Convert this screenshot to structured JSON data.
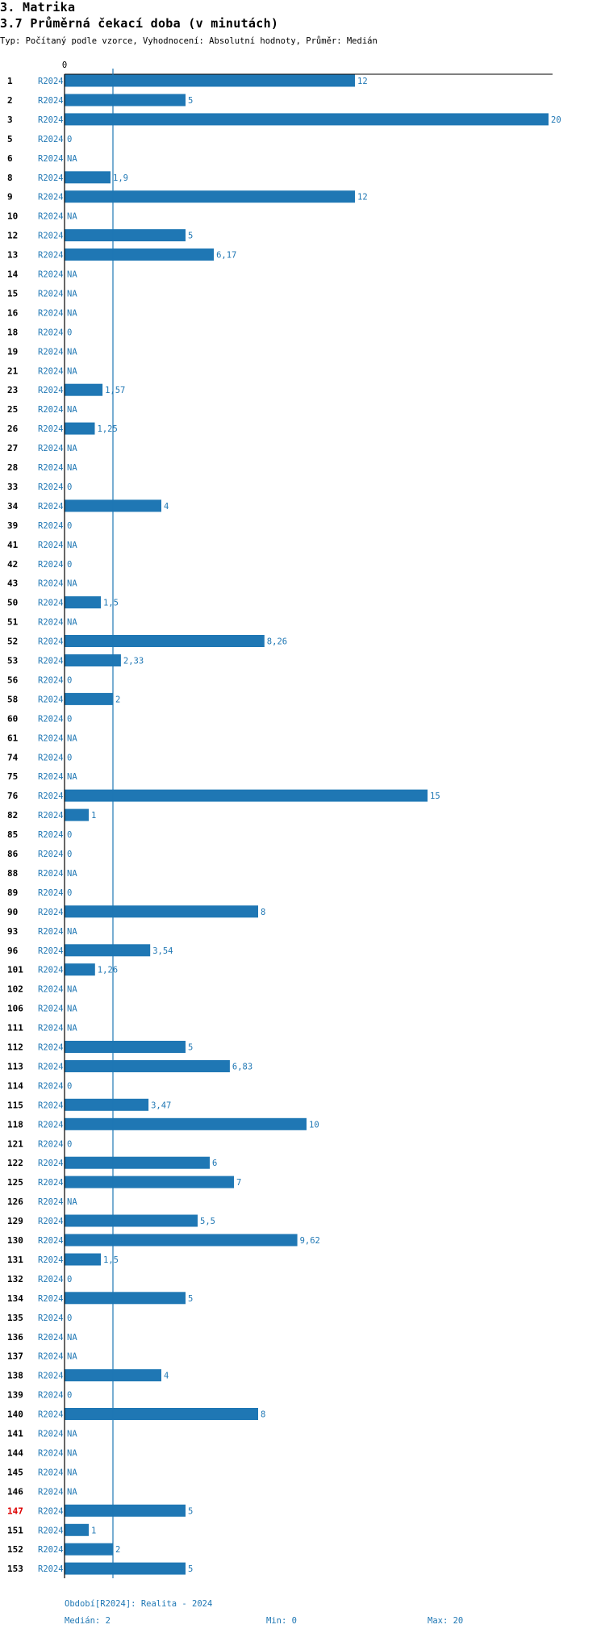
{
  "header": {
    "section": "3. Matrika",
    "title": "3.7 Průměrná čekací doba (v minutách)",
    "subtitle": "Typ: Počítaný podle vzorce, Vyhodnocení: Absolutní hodnoty, Průměr: Medián"
  },
  "footer": {
    "period": "Období[R2024]: Realita - 2024",
    "median": "Medián: 2",
    "min": "Min: 0",
    "max": "Max: 20"
  },
  "colors": {
    "bar": "#1f77b4",
    "text": "#1f77b4",
    "highlight": "#dd0000"
  },
  "chart_data": {
    "type": "bar",
    "orientation": "horizontal",
    "series_label": "R2024",
    "xlim": [
      0,
      20
    ],
    "x_tick_labels": [
      "0"
    ],
    "median_line": 2,
    "highlight_category": "147",
    "rows": [
      {
        "id": "1",
        "value": 12,
        "label": "12"
      },
      {
        "id": "2",
        "value": 5,
        "label": "5"
      },
      {
        "id": "3",
        "value": 20,
        "label": "20"
      },
      {
        "id": "5",
        "value": 0,
        "label": "0"
      },
      {
        "id": "6",
        "value": null,
        "label": "NA"
      },
      {
        "id": "8",
        "value": 1.9,
        "label": "1,9"
      },
      {
        "id": "9",
        "value": 12,
        "label": "12"
      },
      {
        "id": "10",
        "value": null,
        "label": "NA"
      },
      {
        "id": "12",
        "value": 5,
        "label": "5"
      },
      {
        "id": "13",
        "value": 6.17,
        "label": "6,17"
      },
      {
        "id": "14",
        "value": null,
        "label": "NA"
      },
      {
        "id": "15",
        "value": null,
        "label": "NA"
      },
      {
        "id": "16",
        "value": null,
        "label": "NA"
      },
      {
        "id": "18",
        "value": 0,
        "label": "0"
      },
      {
        "id": "19",
        "value": null,
        "label": "NA"
      },
      {
        "id": "21",
        "value": null,
        "label": "NA"
      },
      {
        "id": "23",
        "value": 1.57,
        "label": "1,57"
      },
      {
        "id": "25",
        "value": null,
        "label": "NA"
      },
      {
        "id": "26",
        "value": 1.25,
        "label": "1,25"
      },
      {
        "id": "27",
        "value": null,
        "label": "NA"
      },
      {
        "id": "28",
        "value": null,
        "label": "NA"
      },
      {
        "id": "33",
        "value": 0,
        "label": "0"
      },
      {
        "id": "34",
        "value": 4,
        "label": "4"
      },
      {
        "id": "39",
        "value": 0,
        "label": "0"
      },
      {
        "id": "41",
        "value": null,
        "label": "NA"
      },
      {
        "id": "42",
        "value": 0,
        "label": "0"
      },
      {
        "id": "43",
        "value": null,
        "label": "NA"
      },
      {
        "id": "50",
        "value": 1.5,
        "label": "1,5"
      },
      {
        "id": "51",
        "value": null,
        "label": "NA"
      },
      {
        "id": "52",
        "value": 8.26,
        "label": "8,26"
      },
      {
        "id": "53",
        "value": 2.33,
        "label": "2,33"
      },
      {
        "id": "56",
        "value": 0,
        "label": "0"
      },
      {
        "id": "58",
        "value": 2,
        "label": "2"
      },
      {
        "id": "60",
        "value": 0,
        "label": "0"
      },
      {
        "id": "61",
        "value": null,
        "label": "NA"
      },
      {
        "id": "74",
        "value": 0,
        "label": "0"
      },
      {
        "id": "75",
        "value": null,
        "label": "NA"
      },
      {
        "id": "76",
        "value": 15,
        "label": "15"
      },
      {
        "id": "82",
        "value": 1,
        "label": "1"
      },
      {
        "id": "85",
        "value": 0,
        "label": "0"
      },
      {
        "id": "86",
        "value": 0,
        "label": "0"
      },
      {
        "id": "88",
        "value": null,
        "label": "NA"
      },
      {
        "id": "89",
        "value": 0,
        "label": "0"
      },
      {
        "id": "90",
        "value": 8,
        "label": "8"
      },
      {
        "id": "93",
        "value": null,
        "label": "NA"
      },
      {
        "id": "96",
        "value": 3.54,
        "label": "3,54"
      },
      {
        "id": "101",
        "value": 1.26,
        "label": "1,26"
      },
      {
        "id": "102",
        "value": null,
        "label": "NA"
      },
      {
        "id": "106",
        "value": null,
        "label": "NA"
      },
      {
        "id": "111",
        "value": null,
        "label": "NA"
      },
      {
        "id": "112",
        "value": 5,
        "label": "5"
      },
      {
        "id": "113",
        "value": 6.83,
        "label": "6,83"
      },
      {
        "id": "114",
        "value": 0,
        "label": "0"
      },
      {
        "id": "115",
        "value": 3.47,
        "label": "3,47"
      },
      {
        "id": "118",
        "value": 10,
        "label": "10"
      },
      {
        "id": "121",
        "value": 0,
        "label": "0"
      },
      {
        "id": "122",
        "value": 6,
        "label": "6"
      },
      {
        "id": "125",
        "value": 7,
        "label": "7"
      },
      {
        "id": "126",
        "value": null,
        "label": "NA"
      },
      {
        "id": "129",
        "value": 5.5,
        "label": "5,5"
      },
      {
        "id": "130",
        "value": 9.62,
        "label": "9,62"
      },
      {
        "id": "131",
        "value": 1.5,
        "label": "1,5"
      },
      {
        "id": "132",
        "value": 0,
        "label": "0"
      },
      {
        "id": "134",
        "value": 5,
        "label": "5"
      },
      {
        "id": "135",
        "value": 0,
        "label": "0"
      },
      {
        "id": "136",
        "value": null,
        "label": "NA"
      },
      {
        "id": "137",
        "value": null,
        "label": "NA"
      },
      {
        "id": "138",
        "value": 4,
        "label": "4"
      },
      {
        "id": "139",
        "value": 0,
        "label": "0"
      },
      {
        "id": "140",
        "value": 8,
        "label": "8"
      },
      {
        "id": "141",
        "value": null,
        "label": "NA"
      },
      {
        "id": "144",
        "value": null,
        "label": "NA"
      },
      {
        "id": "145",
        "value": null,
        "label": "NA"
      },
      {
        "id": "146",
        "value": null,
        "label": "NA"
      },
      {
        "id": "147",
        "value": 5,
        "label": "5"
      },
      {
        "id": "151",
        "value": 1,
        "label": "1"
      },
      {
        "id": "152",
        "value": 2,
        "label": "2"
      },
      {
        "id": "153",
        "value": 5,
        "label": "5"
      }
    ]
  }
}
